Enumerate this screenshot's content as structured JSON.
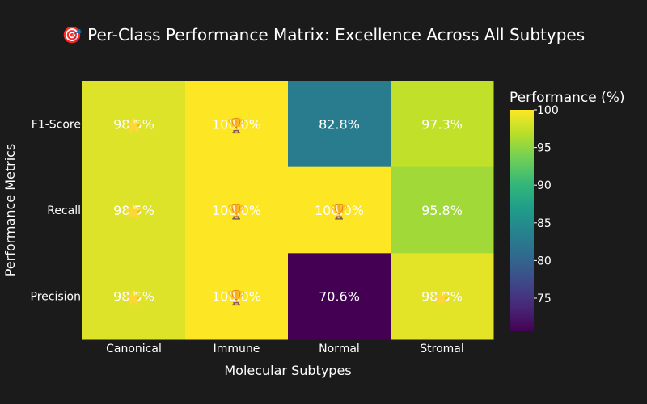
{
  "chart_data": {
    "type": "heatmap",
    "title": "🎯 Per-Class Performance Matrix: Excellence Across All Subtypes",
    "xlabel": "Molecular Subtypes",
    "ylabel": "Performance Metrics",
    "x": [
      "Canonical",
      "Immune",
      "Normal",
      "Stromal"
    ],
    "y": [
      "F1-Score",
      "Recall",
      "Precision"
    ],
    "values": [
      [
        98.5,
        100.0,
        82.8,
        97.3
      ],
      [
        98.5,
        100.0,
        100.0,
        95.8
      ],
      [
        98.5,
        100.0,
        70.6,
        98.8
      ]
    ],
    "cell_labels": [
      [
        "98.5%",
        "100.0%",
        "82.8%",
        "97.3%"
      ],
      [
        "98.5%",
        "100.0%",
        "100.0%",
        "95.8%"
      ],
      [
        "98.5%",
        "100.0%",
        "70.6%",
        "98.8%"
      ]
    ],
    "cell_icons": [
      [
        "⭐",
        "🏆",
        "",
        ""
      ],
      [
        "⭐",
        "🏆",
        "🏆",
        ""
      ],
      [
        "⭐",
        "🏆",
        "",
        "⭐"
      ]
    ],
    "colorbar": {
      "title": "Performance (%)",
      "ticks": [
        75,
        80,
        85,
        90,
        95,
        100
      ],
      "range": [
        70.6,
        100
      ],
      "colorscale": "Viridis"
    }
  }
}
